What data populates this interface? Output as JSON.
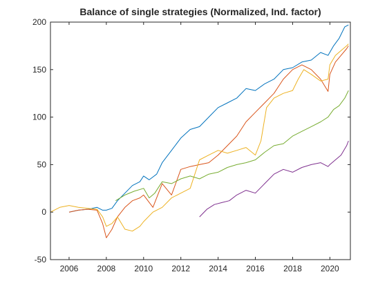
{
  "chart_data": {
    "type": "line",
    "title": "Balance of single strategies (Normalized, Ind. factor)",
    "xlabel": "",
    "ylabel": "",
    "xlim": [
      2005.0,
      2021.1
    ],
    "ylim": [
      -50,
      200
    ],
    "xticks": [
      "2006",
      "2008",
      "2010",
      "2012",
      "2014",
      "2016",
      "2018",
      "2020"
    ],
    "yticks": [
      "-50",
      "0",
      "50",
      "100",
      "150",
      "200"
    ],
    "grid": false,
    "legend": "none",
    "series": [
      {
        "color": "#0072BD",
        "x": [
          2006.0,
          2006.5,
          2007.0,
          2007.5,
          2007.8,
          2008.0,
          2008.3,
          2008.6,
          2009.0,
          2009.4,
          2009.8,
          2010.0,
          2010.3,
          2010.7,
          2011.0,
          2011.5,
          2012.0,
          2012.5,
          2013.0,
          2013.5,
          2014.0,
          2014.5,
          2015.0,
          2015.5,
          2016.0,
          2016.5,
          2017.0,
          2017.5,
          2018.0,
          2018.5,
          2019.0,
          2019.5,
          2019.9,
          2020.2,
          2020.5,
          2020.8,
          2021.0
        ],
        "y": [
          0,
          2,
          3,
          5,
          2,
          2,
          4,
          12,
          20,
          28,
          32,
          38,
          34,
          40,
          52,
          65,
          78,
          87,
          90,
          100,
          110,
          115,
          120,
          130,
          128,
          135,
          140,
          150,
          152,
          158,
          160,
          168,
          165,
          175,
          183,
          195,
          197
        ]
      },
      {
        "color": "#D95319",
        "x": [
          2006.0,
          2006.5,
          2007.0,
          2007.5,
          2007.8,
          2008.0,
          2008.3,
          2008.6,
          2009.0,
          2009.4,
          2009.8,
          2010.0,
          2010.5,
          2011.0,
          2011.5,
          2012.0,
          2012.5,
          2013.0,
          2013.5,
          2014.0,
          2014.5,
          2015.0,
          2015.5,
          2016.0,
          2016.5,
          2017.0,
          2017.5,
          2018.0,
          2018.5,
          2019.0,
          2019.5,
          2019.9,
          2020.0,
          2020.3,
          2020.6,
          2020.9,
          2021.0
        ],
        "y": [
          0,
          2,
          3,
          2,
          -12,
          -27,
          -18,
          -5,
          5,
          12,
          15,
          18,
          5,
          30,
          18,
          45,
          48,
          50,
          52,
          60,
          70,
          80,
          95,
          105,
          115,
          125,
          140,
          150,
          155,
          150,
          140,
          127,
          145,
          158,
          165,
          172,
          175
        ]
      },
      {
        "color": "#EDB120",
        "x": [
          2005.0,
          2005.5,
          2006.0,
          2006.5,
          2007.0,
          2007.5,
          2007.8,
          2008.0,
          2008.3,
          2008.6,
          2009.0,
          2009.4,
          2009.8,
          2010.0,
          2010.5,
          2011.0,
          2011.5,
          2012.0,
          2012.5,
          2013.0,
          2013.5,
          2014.0,
          2014.5,
          2015.0,
          2015.5,
          2016.0,
          2016.3,
          2016.6,
          2017.0,
          2017.5,
          2018.0,
          2018.3,
          2018.6,
          2019.0,
          2019.5,
          2019.9,
          2020.0,
          2020.3,
          2020.6,
          2020.9,
          2021.0
        ],
        "y": [
          0,
          5,
          7,
          5,
          4,
          3,
          -5,
          -15,
          -12,
          -5,
          -18,
          -20,
          -15,
          -10,
          0,
          5,
          15,
          20,
          25,
          55,
          60,
          65,
          62,
          65,
          68,
          60,
          75,
          110,
          120,
          125,
          128,
          140,
          150,
          145,
          138,
          140,
          155,
          165,
          170,
          175,
          177
        ]
      },
      {
        "color": "#7E2F8E",
        "x": [
          2013.0,
          2013.4,
          2013.8,
          2014.2,
          2014.6,
          2015.0,
          2015.5,
          2016.0,
          2016.5,
          2017.0,
          2017.5,
          2018.0,
          2018.5,
          2019.0,
          2019.5,
          2019.9,
          2020.0,
          2020.3,
          2020.6,
          2020.9,
          2021.0
        ],
        "y": [
          -5,
          3,
          8,
          10,
          12,
          18,
          23,
          20,
          30,
          40,
          45,
          42,
          47,
          50,
          52,
          48,
          50,
          55,
          60,
          70,
          75
        ]
      },
      {
        "color": "#77AC30",
        "x": [
          2008.5,
          2009.0,
          2009.5,
          2010.0,
          2010.3,
          2010.6,
          2011.0,
          2011.5,
          2012.0,
          2012.5,
          2013.0,
          2013.5,
          2014.0,
          2014.5,
          2015.0,
          2015.5,
          2016.0,
          2016.5,
          2017.0,
          2017.5,
          2018.0,
          2018.5,
          2019.0,
          2019.5,
          2019.9,
          2020.2,
          2020.5,
          2020.8,
          2021.0
        ],
        "y": [
          12,
          18,
          22,
          25,
          15,
          20,
          32,
          30,
          35,
          38,
          35,
          40,
          42,
          47,
          50,
          52,
          55,
          63,
          70,
          72,
          80,
          85,
          90,
          95,
          100,
          108,
          112,
          120,
          128
        ]
      }
    ]
  }
}
